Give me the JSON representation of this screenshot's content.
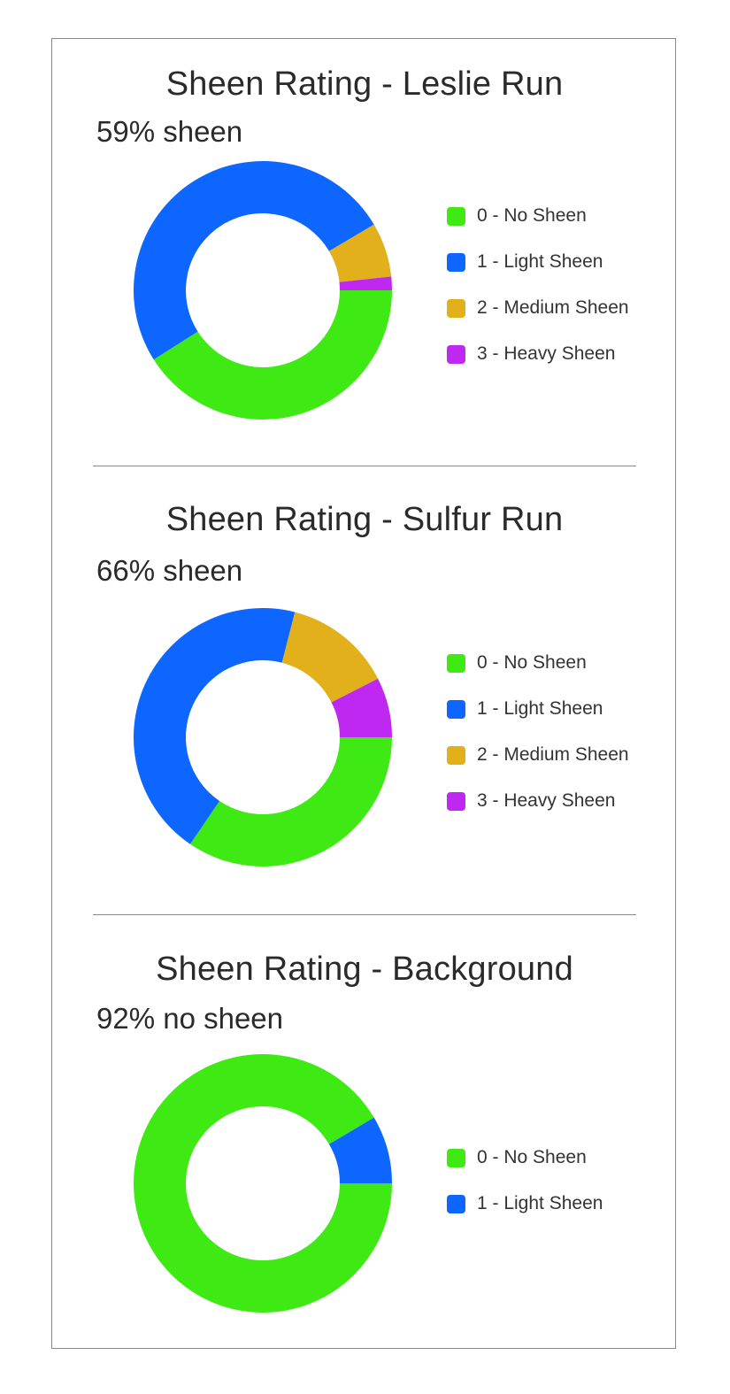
{
  "chart_data": [
    {
      "type": "pie",
      "title": "Sheen Rating - Leslie Run",
      "subtitle": "59% sheen",
      "categories": [
        "0 - No Sheen",
        "1 - Light Sheen",
        "2 - Medium Sheen",
        "3 - Heavy Sheen"
      ],
      "values": [
        41,
        50.5,
        6.8,
        1.7
      ],
      "colors": [
        "#3fea14",
        "#0d66ff",
        "#e2b01a",
        "#bf28f0"
      ],
      "legend_position": "right"
    },
    {
      "type": "pie",
      "title": "Sheen Rating - Sulfur Run",
      "subtitle": "66% sheen",
      "categories": [
        "0 - No Sheen",
        "1 - Light Sheen",
        "2 - Medium Sheen",
        "3 - Heavy Sheen"
      ],
      "values": [
        34.5,
        44.5,
        13.5,
        7.5
      ],
      "colors": [
        "#3fea14",
        "#0d66ff",
        "#e2b01a",
        "#bf28f0"
      ],
      "legend_position": "right"
    },
    {
      "type": "pie",
      "title": "Sheen Rating - Background",
      "subtitle": "92% no sheen",
      "categories": [
        "0 - No Sheen",
        "1 - Light Sheen"
      ],
      "values": [
        91.5,
        8.5
      ],
      "colors": [
        "#3fea14",
        "#0d66ff"
      ],
      "legend_position": "right"
    }
  ]
}
